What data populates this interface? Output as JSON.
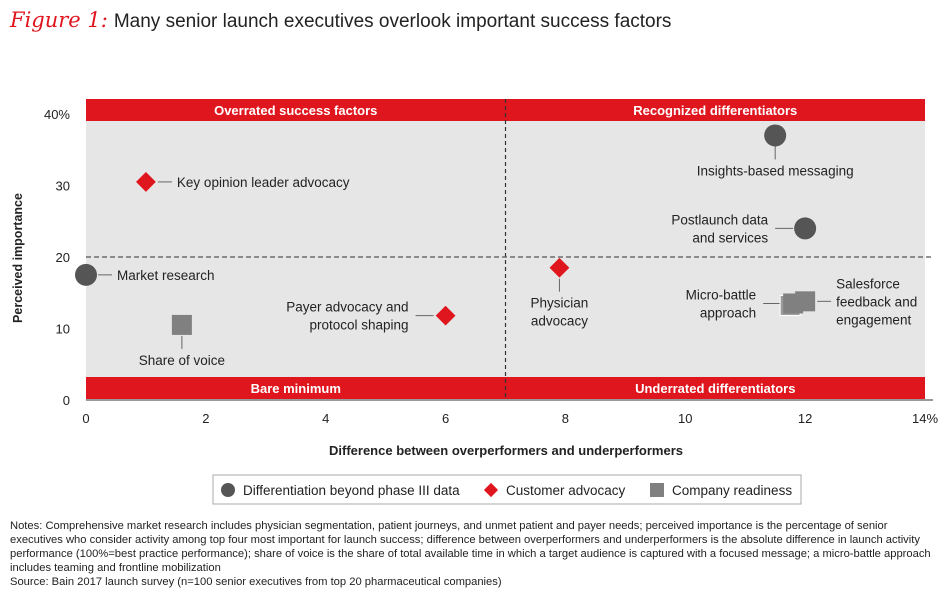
{
  "figure_label": "Figure 1:",
  "title": "Many senior launch executives overlook important success factors",
  "notes": "Notes: Comprehensive market research includes physician segmentation, patient journeys, and unmet patient and payer needs; perceived importance is the percentage of senior executives who consider activity among top four most important for launch success; difference between overperformers and underperformers is the absolute difference in launch activity performance (100%=best practice performance); share of voice is the share of total available time in which a target audience is captured with a focused message; a micro-battle approach includes teaming and frontline mobilization",
  "source": "Source: Bain 2017 launch survey (n=100 senior executives from top 20 pharmaceutical companies)",
  "colors": {
    "accent": "#e0161f",
    "circle": "#555555",
    "square": "#808080",
    "quadrant_bg": "#e6e6e6"
  },
  "chart_data": {
    "type": "scatter",
    "xlabel": "Difference between overperformers and underperformers",
    "ylabel": "Perceived importance",
    "xlim": [
      0,
      14
    ],
    "ylim": [
      0,
      40
    ],
    "x_ticks": [
      "0",
      "2",
      "4",
      "6",
      "8",
      "10",
      "12",
      "14%"
    ],
    "y_ticks": [
      "0",
      "10",
      "20",
      "30",
      "40%"
    ],
    "x_tick_values": [
      0,
      2,
      4,
      6,
      8,
      10,
      12,
      14
    ],
    "y_tick_values": [
      0,
      10,
      20,
      30,
      40
    ],
    "divider_x": 7,
    "divider_y": 20,
    "quadrants": {
      "top_left": "Overrated success factors",
      "top_right": "Recognized differentiators",
      "bottom_left": "Bare minimum",
      "bottom_right": "Underrated differentiators"
    },
    "legend": [
      {
        "key": "circle",
        "label": "Differentiation beyond phase III data"
      },
      {
        "key": "diamond",
        "label": "Customer advocacy"
      },
      {
        "key": "square",
        "label": "Company readiness"
      }
    ],
    "points": [
      {
        "label": [
          "Key opinion leader advocacy"
        ],
        "x": 1.0,
        "y": 30.5,
        "shape": "diamond",
        "label_pos": "right"
      },
      {
        "label": [
          "Market research"
        ],
        "x": 0.0,
        "y": 17.5,
        "shape": "circle",
        "label_pos": "right"
      },
      {
        "label": [
          "Share of voice"
        ],
        "x": 1.6,
        "y": 10.5,
        "shape": "square",
        "label_pos": "below"
      },
      {
        "label": [
          "Payer advocacy and",
          "protocol shaping"
        ],
        "x": 6.0,
        "y": 11.8,
        "shape": "diamond",
        "label_pos": "left"
      },
      {
        "label": [
          "Physician",
          "advocacy"
        ],
        "x": 7.9,
        "y": 18.5,
        "shape": "diamond",
        "label_pos": "below"
      },
      {
        "label": [
          "Insights-based messaging"
        ],
        "x": 11.5,
        "y": 37.0,
        "shape": "circle",
        "label_pos": "below"
      },
      {
        "label": [
          "Postlaunch data",
          "and services"
        ],
        "x": 12.0,
        "y": 24.0,
        "shape": "circle",
        "label_pos": "left"
      },
      {
        "label": [
          "Micro-battle",
          "approach"
        ],
        "x": 11.8,
        "y": 13.5,
        "shape": "square",
        "label_pos": "left"
      },
      {
        "label": [
          "Salesforce",
          "feedback and",
          "engagement"
        ],
        "x": 12.0,
        "y": 13.8,
        "shape": "square",
        "label_pos": "right"
      }
    ]
  }
}
